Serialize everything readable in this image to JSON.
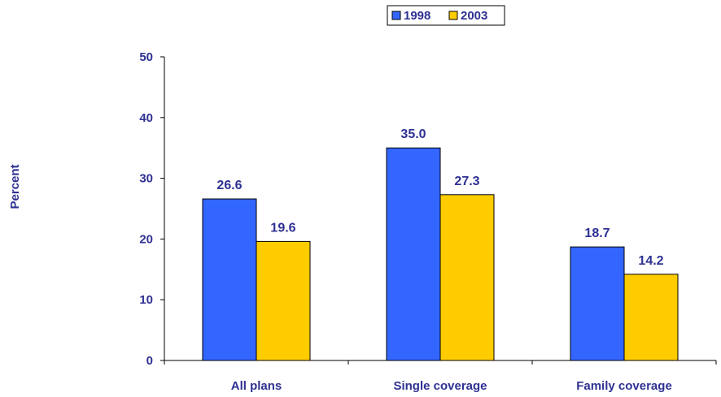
{
  "chart_data": {
    "type": "bar",
    "categories": [
      "All plans",
      "Single coverage",
      "Family coverage"
    ],
    "series": [
      {
        "name": "1998",
        "values": [
          26.6,
          35.0,
          18.7
        ],
        "color": "#3366FF"
      },
      {
        "name": "2003",
        "values": [
          19.6,
          27.3,
          14.2
        ],
        "color": "#FFCC00"
      }
    ],
    "data_labels": [
      [
        "26.6",
        "35.0",
        "18.7"
      ],
      [
        "19.6",
        "27.3",
        "14.2"
      ]
    ],
    "ylabel": "Percent",
    "xlabel": "",
    "ylim": [
      0,
      50
    ],
    "yticks": [
      "0",
      "10",
      "20",
      "30",
      "40",
      "50"
    ],
    "grid": false,
    "legend_position": "top-right",
    "text_color": "#2E3192"
  }
}
